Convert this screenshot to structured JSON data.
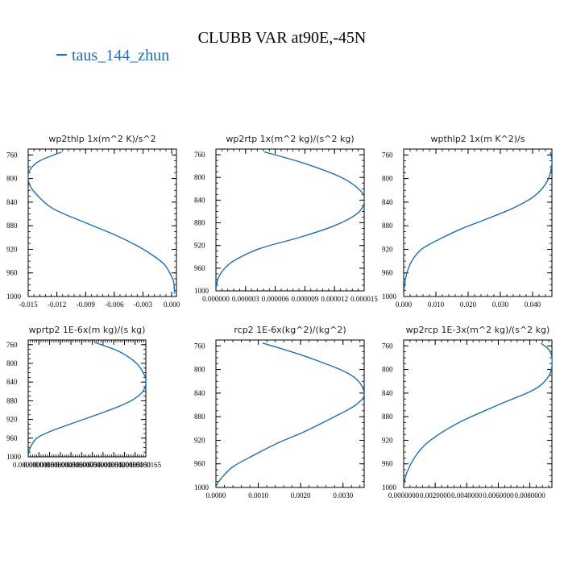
{
  "header": {
    "title": "CLUBB VAR at90E,-45N",
    "legend_label": "taus_144_zhun",
    "line_color": "#1f6fb2"
  },
  "chart_data": [
    {
      "type": "line",
      "title": "wp2thlp   1x(m^2 K)/s^2",
      "xlim": [
        -0.015,
        0.0005
      ],
      "ylim": [
        1000,
        750
      ],
      "xticks": [
        -0.015,
        -0.012,
        -0.009,
        -0.006,
        -0.003,
        0.0
      ],
      "xticklabels": [
        "-0.015",
        "-0.012",
        "-0.009",
        "-0.006",
        "-0.003",
        "0.000"
      ],
      "yticks": [
        760,
        800,
        840,
        880,
        920,
        960,
        1000
      ],
      "yticklabels": [
        "760",
        "800",
        "840",
        "880",
        "920",
        "960",
        "1000"
      ],
      "x": [
        -0.0115,
        -0.0138,
        -0.0148,
        -0.015,
        -0.0145,
        -0.0125,
        -0.009,
        -0.006,
        -0.0035,
        -0.002,
        -0.0008,
        -0.0002,
        0.0002,
        0.0003
      ],
      "y": [
        755,
        770,
        785,
        800,
        820,
        850,
        875,
        895,
        915,
        930,
        945,
        960,
        975,
        995
      ]
    },
    {
      "type": "line",
      "title": "wp2rtp   1x(m^2 kg)/(s^2 kg)",
      "xlim": [
        0.0,
        1.5e-05
      ],
      "ylim": [
        1000,
        750
      ],
      "xticks": [
        0.0,
        3e-06,
        6e-06,
        9e-06,
        1.2e-05,
        1.5e-05
      ],
      "xticklabels": [
        "0.000000",
        "0.000003",
        "0.000006",
        "0.000009",
        "0.000012",
        "0.000015"
      ],
      "yticks": [
        760,
        800,
        840,
        880,
        920,
        960,
        1000
      ],
      "yticklabels": [
        "760",
        "800",
        "840",
        "880",
        "920",
        "960",
        "1000"
      ],
      "x": [
        4.9e-06,
        8.9e-06,
        1.27e-05,
        1.47e-05,
        1.5e-05,
        1.42e-05,
        1.2e-05,
        8.6e-06,
        4.5e-06,
        2e-06,
        9e-07,
        3e-07,
        5e-08,
        0.0
      ],
      "y": [
        755,
        775,
        800,
        825,
        845,
        865,
        885,
        905,
        925,
        945,
        960,
        975,
        990,
        997
      ]
    },
    {
      "type": "line",
      "title": "wpthlp2   1x(m K^2)/s",
      "xlim": [
        0.0,
        0.046
      ],
      "ylim": [
        1000,
        750
      ],
      "xticks": [
        0.0,
        0.01,
        0.02,
        0.03,
        0.04
      ],
      "xticklabels": [
        "0.000",
        "0.010",
        "0.020",
        "0.030",
        "0.040"
      ],
      "yticks": [
        760,
        800,
        840,
        880,
        920,
        960,
        1000
      ],
      "yticklabels": [
        "760",
        "800",
        "840",
        "880",
        "920",
        "960",
        "1000"
      ],
      "x": [
        0.0455,
        0.046,
        0.0445,
        0.0405,
        0.034,
        0.026,
        0.018,
        0.011,
        0.0055,
        0.0025,
        0.001,
        0.0003,
        0.0
      ],
      "y": [
        755,
        775,
        805,
        830,
        850,
        868,
        885,
        903,
        920,
        940,
        960,
        980,
        997
      ]
    },
    {
      "type": "line",
      "title": "wprtp2   1E-6x(m kg)/(s kg)",
      "xlim": [
        0.0,
        1.65e-05
      ],
      "ylim": [
        1000,
        750
      ],
      "xticks": [
        0.0,
        1.5e-06,
        3e-06,
        4.5e-06,
        6e-06,
        7.5e-06,
        9e-06,
        1.05e-05,
        1.2e-05,
        1.35e-05,
        1.5e-05,
        1.65e-05
      ],
      "xticklabels": [
        "0.0000000",
        "0.0000015",
        "0.0000030",
        "0.0000045",
        "0.0000060",
        "0.0000075",
        "0.0000090",
        "0.0000105",
        "0.0000120",
        "0.0000135",
        "0.0000150",
        "0.0000165"
      ],
      "yticks": [
        760,
        800,
        840,
        880,
        920,
        960,
        1000
      ],
      "yticklabels": [
        "760",
        "800",
        "840",
        "880",
        "920",
        "960",
        "1000"
      ],
      "x": [
        9.3e-06,
        1.28e-05,
        1.52e-05,
        1.63e-05,
        1.65e-05,
        1.58e-05,
        1.38e-05,
        1.05e-05,
        6.8e-06,
        3.2e-06,
        1.2e-06,
        3e-07,
        0.0
      ],
      "y": [
        755,
        775,
        800,
        825,
        845,
        865,
        885,
        905,
        925,
        945,
        960,
        980,
        997
      ]
    },
    {
      "type": "line",
      "title": "rcp2   1E-6x(kg^2)/(kg^2)",
      "xlim": [
        0.0,
        0.0035
      ],
      "ylim": [
        1000,
        750
      ],
      "xticks": [
        0.0,
        0.001,
        0.002,
        0.003
      ],
      "xticklabels": [
        "0.0000",
        "0.0010",
        "0.0020",
        "0.0030"
      ],
      "yticks": [
        760,
        800,
        840,
        880,
        920,
        960,
        1000
      ],
      "yticklabels": [
        "760",
        "800",
        "840",
        "880",
        "920",
        "960",
        "1000"
      ],
      "x": [
        0.0011,
        0.0022,
        0.0032,
        0.0035,
        0.0033,
        0.0028,
        0.0021,
        0.00145,
        0.0009,
        0.0004,
        0.00012,
        0.0
      ],
      "y": [
        755,
        780,
        810,
        840,
        860,
        880,
        905,
        925,
        945,
        965,
        985,
        998
      ]
    },
    {
      "type": "line",
      "title": "wp2rcp   1E-3x(m^2 kg)/(s^2 kg)",
      "xlim": [
        0.0,
        0.0094
      ],
      "ylim": [
        1000,
        750
      ],
      "xticks": [
        0.0,
        0.002,
        0.004,
        0.006,
        0.008
      ],
      "xticklabels": [
        "0.0000000",
        "0.0020000",
        "0.0040000",
        "0.0060000",
        "0.0080000"
      ],
      "yticks": [
        760,
        800,
        840,
        880,
        920,
        960,
        1000
      ],
      "yticklabels": [
        "760",
        "800",
        "840",
        "880",
        "920",
        "960",
        "1000"
      ],
      "x": [
        0.0087,
        0.0093,
        0.0094,
        0.0091,
        0.0082,
        0.006,
        0.0035,
        0.0017,
        0.0008,
        0.0002,
        0.0
      ],
      "y": [
        755,
        770,
        795,
        815,
        835,
        860,
        890,
        920,
        945,
        975,
        997
      ]
    }
  ]
}
